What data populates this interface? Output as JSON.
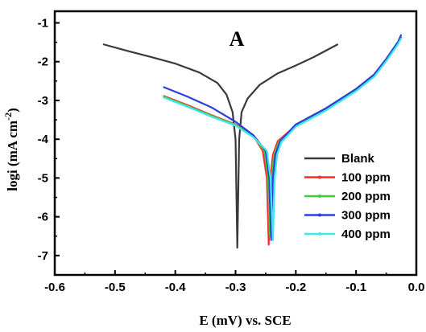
{
  "chart_data": {
    "type": "line",
    "panel_label": "A",
    "xlabel": "E (mV) vs. SCE",
    "ylabel_main": "logi (mA cm",
    "ylabel_sup": "-2",
    "ylabel_end": ")",
    "xlim": [
      -0.6,
      0.0
    ],
    "ylim": [
      -7.5,
      -0.7
    ],
    "xticks": [
      -0.6,
      -0.5,
      -0.4,
      -0.3,
      -0.2,
      -0.1,
      0.0
    ],
    "xtick_labels": [
      "-0.6",
      "-0.5",
      "-0.4",
      "-0.3",
      "-0.2",
      "-0.1",
      "0.0"
    ],
    "yticks": [
      -1,
      -2,
      -3,
      -4,
      -5,
      -6,
      -7
    ],
    "ytick_labels": [
      "-1",
      "-2",
      "-3",
      "-4",
      "-5",
      "-6",
      "-7"
    ],
    "grid": false,
    "legend_position": "bottom-right",
    "series": [
      {
        "name": "Blank",
        "color": "#3a3a3a",
        "points": [
          [
            -0.52,
            -1.55
          ],
          [
            -0.48,
            -1.72
          ],
          [
            -0.44,
            -1.88
          ],
          [
            -0.4,
            -2.05
          ],
          [
            -0.36,
            -2.28
          ],
          [
            -0.33,
            -2.55
          ],
          [
            -0.315,
            -2.85
          ],
          [
            -0.305,
            -3.3
          ],
          [
            -0.3,
            -4.0
          ],
          [
            -0.297,
            -6.8
          ],
          [
            -0.294,
            -4.0
          ],
          [
            -0.29,
            -3.3
          ],
          [
            -0.28,
            -2.95
          ],
          [
            -0.26,
            -2.6
          ],
          [
            -0.23,
            -2.3
          ],
          [
            -0.2,
            -2.1
          ],
          [
            -0.17,
            -1.88
          ],
          [
            -0.13,
            -1.55
          ]
        ]
      },
      {
        "name": "100 ppm",
        "color": "#ff2b2b",
        "points": [
          [
            -0.42,
            -2.88
          ],
          [
            -0.38,
            -3.12
          ],
          [
            -0.34,
            -3.38
          ],
          [
            -0.3,
            -3.62
          ],
          [
            -0.27,
            -3.92
          ],
          [
            -0.255,
            -4.3
          ],
          [
            -0.248,
            -5.0
          ],
          [
            -0.245,
            -6.72
          ],
          [
            -0.242,
            -5.0
          ],
          [
            -0.238,
            -4.4
          ],
          [
            -0.23,
            -4.05
          ],
          [
            -0.2,
            -3.65
          ],
          [
            -0.15,
            -3.22
          ],
          [
            -0.1,
            -2.72
          ],
          [
            -0.07,
            -2.35
          ],
          [
            -0.05,
            -1.95
          ],
          [
            -0.03,
            -1.5
          ],
          [
            -0.025,
            -1.35
          ]
        ]
      },
      {
        "name": "200 ppm",
        "color": "#3dcc3d",
        "points": [
          [
            -0.42,
            -2.9
          ],
          [
            -0.38,
            -3.14
          ],
          [
            -0.34,
            -3.4
          ],
          [
            -0.3,
            -3.63
          ],
          [
            -0.27,
            -3.94
          ],
          [
            -0.252,
            -4.3
          ],
          [
            -0.246,
            -5.0
          ],
          [
            -0.243,
            -6.5
          ],
          [
            -0.24,
            -5.0
          ],
          [
            -0.236,
            -4.4
          ],
          [
            -0.228,
            -4.06
          ],
          [
            -0.2,
            -3.66
          ],
          [
            -0.15,
            -3.24
          ],
          [
            -0.1,
            -2.74
          ],
          [
            -0.07,
            -2.37
          ],
          [
            -0.05,
            -1.97
          ],
          [
            -0.03,
            -1.52
          ],
          [
            -0.025,
            -1.37
          ]
        ]
      },
      {
        "name": "300 ppm",
        "color": "#2d3fd8",
        "points": [
          [
            -0.42,
            -2.65
          ],
          [
            -0.38,
            -2.9
          ],
          [
            -0.34,
            -3.18
          ],
          [
            -0.3,
            -3.55
          ],
          [
            -0.27,
            -3.9
          ],
          [
            -0.25,
            -4.3
          ],
          [
            -0.244,
            -5.0
          ],
          [
            -0.241,
            -6.6
          ],
          [
            -0.238,
            -5.0
          ],
          [
            -0.234,
            -4.4
          ],
          [
            -0.226,
            -4.05
          ],
          [
            -0.2,
            -3.62
          ],
          [
            -0.15,
            -3.2
          ],
          [
            -0.1,
            -2.7
          ],
          [
            -0.07,
            -2.33
          ],
          [
            -0.05,
            -1.93
          ],
          [
            -0.03,
            -1.48
          ],
          [
            -0.025,
            -1.3
          ]
        ]
      },
      {
        "name": "400 ppm",
        "color": "#3fe8f0",
        "points": [
          [
            -0.42,
            -2.92
          ],
          [
            -0.38,
            -3.16
          ],
          [
            -0.34,
            -3.42
          ],
          [
            -0.3,
            -3.65
          ],
          [
            -0.27,
            -3.95
          ],
          [
            -0.248,
            -4.3
          ],
          [
            -0.242,
            -5.0
          ],
          [
            -0.238,
            -6.6
          ],
          [
            -0.235,
            -5.0
          ],
          [
            -0.231,
            -4.4
          ],
          [
            -0.224,
            -4.07
          ],
          [
            -0.2,
            -3.68
          ],
          [
            -0.15,
            -3.26
          ],
          [
            -0.1,
            -2.76
          ],
          [
            -0.07,
            -2.39
          ],
          [
            -0.05,
            -1.99
          ],
          [
            -0.03,
            -1.54
          ],
          [
            -0.025,
            -1.39
          ]
        ]
      }
    ]
  }
}
